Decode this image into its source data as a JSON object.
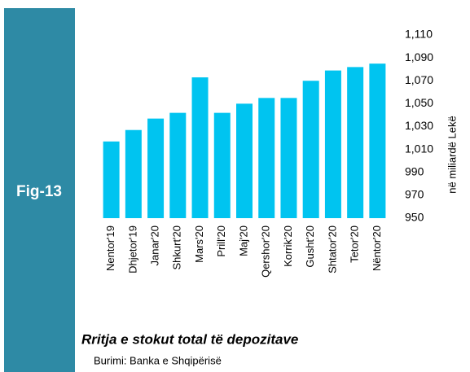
{
  "chart_data": {
    "type": "bar",
    "badge": "Fig-13",
    "title": "Rritja e stokut total të depozitave",
    "source": "Burimi: Banka e Shqipërisë",
    "y_axis_label": "në miliardë  Lekë",
    "categories": [
      "Nentor'19",
      "Dhjetor'19",
      "Janar'20",
      "Shkurt'20",
      "Mars'20",
      "Prill'20",
      "Maj'20",
      "Qershor'20",
      "Korrik'20",
      "Gusht'20",
      "Shtator'20",
      "Tetor'20",
      "Nëntor'20"
    ],
    "values": [
      1017,
      1027,
      1037,
      1042,
      1073,
      1042,
      1050,
      1055,
      1055,
      1070,
      1079,
      1082,
      1085
    ],
    "color": "#00c4f0",
    "ylim": [
      950,
      1110
    ],
    "yticks": [
      950,
      970,
      990,
      {
        "value": 1010,
        "label": "1,010"
      },
      {
        "value": 1030,
        "label": "1,030"
      },
      {
        "value": 1050,
        "label": "1,050"
      },
      {
        "value": 1070,
        "label": "1,070"
      },
      {
        "value": 1090,
        "label": "1,090"
      },
      {
        "value": 1110,
        "label": "1,110"
      }
    ]
  }
}
